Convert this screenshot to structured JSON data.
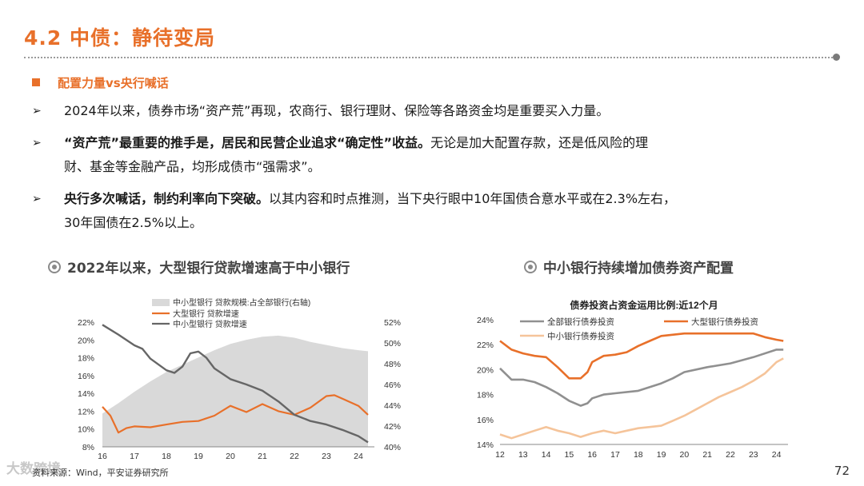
{
  "slide": {
    "title": "4.2 中债：静待变局",
    "subheading": "配置力量vs央行喊话",
    "bullets": [
      {
        "plain": "2024年以来，债券市场“资产荒”再现，农商行、银行理财、保险等各路资金均是重要买入力量。"
      },
      {
        "bold": "“资产荒”最重要的推手是，居民和民营企业追求“确定性”收益。",
        "plain": "无论是加大配置存款，还是低风险的理",
        "line2": "财、基金等金融产品，均形成债市“强需求”。"
      },
      {
        "bold": "央行多次喊话，制约利率向下突破。",
        "plain": "以其内容和时点推测，当下央行眼中10年国债合意水平或在2.3%左右，",
        "line2": "30年国债在2.5%以上。"
      }
    ],
    "source": "资料来源：Wind，平安证券研究所",
    "watermark": "大数跨境",
    "page_number": "72"
  },
  "colors": {
    "accent": "#e8702a",
    "gray_line": "#666666",
    "light_orange": "#f5c49a",
    "area": "#d9d9d9"
  },
  "chart_left_title": "2022年以来，大型银行贷款增速高于中小银行",
  "chart_right_title": "中小银行持续增加债券资产配置",
  "chart_data": [
    {
      "type": "line",
      "title": "",
      "x_ticks": [
        "16",
        "17",
        "18",
        "19",
        "20",
        "21",
        "22",
        "23",
        "24"
      ],
      "y_left": {
        "range": [
          8,
          22
        ],
        "ticks": [
          "22%",
          "20%",
          "18%",
          "16%",
          "14%",
          "12%",
          "10%",
          "8%"
        ]
      },
      "y_right": {
        "range": [
          40,
          52
        ],
        "ticks": [
          "52%",
          "50%",
          "48%",
          "46%",
          "44%",
          "42%",
          "40%"
        ]
      },
      "legend": [
        "中小型银行 贷款规模:占全部银行(右轴)",
        "大型银行 贷款增速",
        "中小型银行 贷款增速"
      ],
      "series": [
        {
          "name": "中小型银行 贷款规模:占全部银行(右轴)",
          "type": "area",
          "axis": "right",
          "x": [
            16,
            16.5,
            17,
            17.5,
            18,
            18.5,
            19,
            19.5,
            20,
            20.5,
            21,
            21.5,
            22,
            22.5,
            23,
            23.5,
            24,
            24.3
          ],
          "y": [
            43.2,
            44.2,
            45.3,
            46.3,
            47.2,
            47.9,
            48.6,
            49.3,
            49.9,
            50.3,
            50.6,
            50.7,
            50.5,
            50.1,
            49.8,
            49.5,
            49.3,
            49.2
          ]
        },
        {
          "name": "大型银行 贷款增速",
          "axis": "left",
          "x": [
            16,
            16.25,
            16.5,
            16.75,
            17,
            17.5,
            18,
            18.5,
            19,
            19.5,
            20,
            20.5,
            21,
            21.5,
            22,
            22.5,
            23,
            23.25,
            23.5,
            24,
            24.3
          ],
          "y": [
            12.5,
            11.5,
            9.6,
            10.1,
            10.3,
            10.2,
            10.5,
            10.8,
            10.9,
            11.5,
            12.6,
            11.9,
            12.8,
            12.0,
            11.6,
            12.4,
            13.7,
            13.8,
            13.4,
            12.6,
            11.6
          ]
        },
        {
          "name": "中小型银行 贷款增速",
          "axis": "left",
          "x": [
            16,
            16.5,
            17,
            17.25,
            17.5,
            18,
            18.25,
            18.5,
            18.75,
            19,
            19.25,
            19.5,
            20,
            20.5,
            21,
            21.5,
            22,
            22.5,
            23,
            23.5,
            24,
            24.3
          ],
          "y": [
            21.7,
            20.6,
            19.4,
            19.0,
            17.9,
            16.6,
            16.3,
            17.0,
            18.5,
            18.7,
            18.0,
            16.8,
            15.6,
            15.0,
            14.3,
            13.1,
            11.6,
            10.9,
            10.5,
            9.9,
            9.2,
            8.5
          ]
        }
      ]
    },
    {
      "type": "line",
      "title": "债券投资占资金运用比例:近12个月",
      "x_ticks": [
        "12",
        "13",
        "14",
        "15",
        "16",
        "17",
        "18",
        "19",
        "20",
        "21",
        "22",
        "23",
        "24"
      ],
      "y_range": [
        14,
        24
      ],
      "y_ticks": [
        "24%",
        "22%",
        "20%",
        "18%",
        "16%",
        "14%"
      ],
      "legend": [
        "全部银行债券投资",
        "大型银行债券投资",
        "中小银行债券投资"
      ],
      "series": [
        {
          "name": "全部银行债券投资",
          "x": [
            12,
            12.5,
            13,
            13.5,
            14,
            14.5,
            15,
            15.5,
            15.8,
            16,
            16.5,
            17,
            18,
            19,
            19.5,
            20,
            21,
            22,
            23,
            24,
            24.3
          ],
          "y": [
            20.1,
            19.2,
            19.2,
            19.0,
            18.6,
            18.1,
            17.5,
            17.1,
            17.3,
            17.7,
            18.0,
            18.1,
            18.3,
            18.9,
            19.3,
            19.8,
            20.2,
            20.5,
            21.0,
            21.6,
            21.6
          ]
        },
        {
          "name": "大型银行债券投资",
          "x": [
            12,
            12.5,
            13,
            13.5,
            14,
            14.5,
            15,
            15.5,
            15.8,
            16,
            16.5,
            17,
            17.5,
            18,
            18.5,
            19,
            20,
            21,
            22,
            23,
            23.5,
            24,
            24.3
          ],
          "y": [
            22.3,
            21.6,
            21.3,
            21.1,
            21.0,
            20.2,
            19.3,
            19.3,
            19.8,
            20.6,
            21.1,
            21.2,
            21.4,
            21.9,
            22.3,
            22.7,
            22.9,
            22.9,
            22.9,
            22.9,
            22.6,
            22.4,
            22.3
          ]
        },
        {
          "name": "中小银行债券投资",
          "x": [
            12,
            12.5,
            13,
            13.5,
            14,
            14.5,
            15,
            15.5,
            16,
            16.5,
            17,
            17.5,
            18,
            18.5,
            19,
            19.5,
            20,
            20.5,
            21,
            21.5,
            22,
            22.5,
            23,
            23.5,
            24,
            24.3
          ],
          "y": [
            14.8,
            14.5,
            14.8,
            15.1,
            15.4,
            15.1,
            14.9,
            14.6,
            14.9,
            15.1,
            14.9,
            15.1,
            15.3,
            15.4,
            15.5,
            15.9,
            16.3,
            16.8,
            17.3,
            17.8,
            18.2,
            18.6,
            19.1,
            19.7,
            20.6,
            20.9
          ]
        }
      ]
    }
  ]
}
